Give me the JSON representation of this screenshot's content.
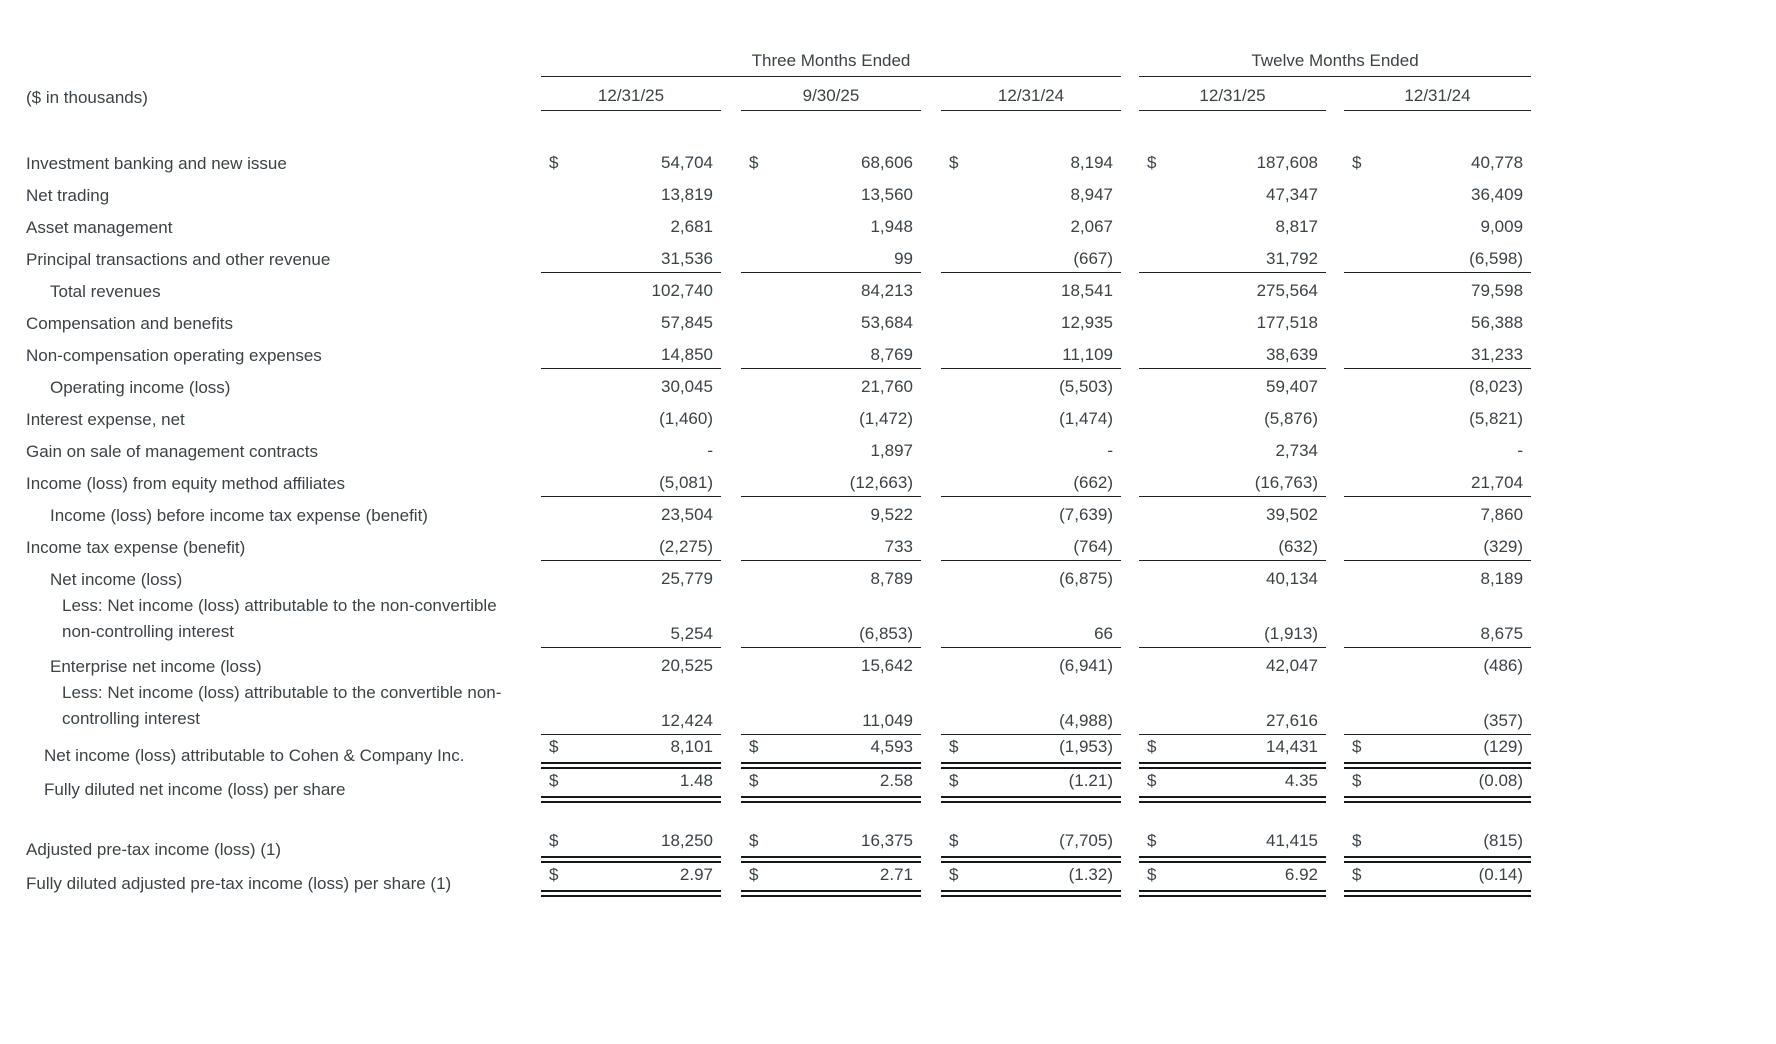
{
  "meta": {
    "units_label": "($ in thousands)"
  },
  "header": {
    "groups": [
      {
        "label": "Three Months Ended"
      },
      {
        "label": "Twelve Months Ended"
      }
    ],
    "dates": [
      "12/31/25",
      "9/30/25",
      "12/31/24",
      "12/31/25",
      "12/31/24"
    ]
  },
  "rows": [
    {
      "label": "Investment banking and new issue",
      "ind": 0,
      "dollar": true,
      "rule": "none",
      "values": [
        "54,704",
        "68,606",
        "8,194",
        "187,608",
        "40,778"
      ]
    },
    {
      "label": "Net trading",
      "ind": 0,
      "dollar": false,
      "rule": "none",
      "values": [
        "13,819",
        "13,560",
        "8,947",
        "47,347",
        "36,409"
      ]
    },
    {
      "label": "Asset management",
      "ind": 0,
      "dollar": false,
      "rule": "none",
      "values": [
        "2,681",
        "1,948",
        "2,067",
        "8,817",
        "9,009"
      ]
    },
    {
      "label": "Principal transactions and other revenue",
      "ind": 0,
      "dollar": false,
      "rule": "single",
      "values": [
        "31,536",
        "99",
        "(667)",
        "31,792",
        "(6,598)"
      ]
    },
    {
      "label": "Total revenues",
      "ind": 2,
      "dollar": false,
      "rule": "none",
      "values": [
        "102,740",
        "84,213",
        "18,541",
        "275,564",
        "79,598"
      ]
    },
    {
      "label": "Compensation and benefits",
      "ind": 0,
      "dollar": false,
      "rule": "none",
      "values": [
        "57,845",
        "53,684",
        "12,935",
        "177,518",
        "56,388"
      ]
    },
    {
      "label": "Non-compensation operating expenses",
      "ind": 0,
      "dollar": false,
      "rule": "single",
      "values": [
        "14,850",
        "8,769",
        "11,109",
        "38,639",
        "31,233"
      ]
    },
    {
      "label": "Operating income (loss)",
      "ind": 2,
      "dollar": false,
      "rule": "none",
      "values": [
        "30,045",
        "21,760",
        "(5,503)",
        "59,407",
        "(8,023)"
      ]
    },
    {
      "label": "Interest expense, net",
      "ind": 0,
      "dollar": false,
      "rule": "none",
      "values": [
        "(1,460)",
        "(1,472)",
        "(1,474)",
        "(5,876)",
        "(5,821)"
      ]
    },
    {
      "label": "Gain on sale of management contracts",
      "ind": 0,
      "dollar": false,
      "rule": "none",
      "values": [
        "-",
        "1,897",
        "-",
        "2,734",
        "-"
      ]
    },
    {
      "label": "Income (loss) from equity method affiliates",
      "ind": 0,
      "dollar": false,
      "rule": "single",
      "values": [
        "(5,081)",
        "(12,663)",
        "(662)",
        "(16,763)",
        "21,704"
      ]
    },
    {
      "label": "Income (loss) before income tax expense (benefit)",
      "ind": 2,
      "dollar": false,
      "rule": "none",
      "values": [
        "23,504",
        "9,522",
        "(7,639)",
        "39,502",
        "7,860"
      ]
    },
    {
      "label": "Income tax expense (benefit)",
      "ind": 0,
      "dollar": false,
      "rule": "single",
      "values": [
        "(2,275)",
        "733",
        "(764)",
        "(632)",
        "(329)"
      ]
    },
    {
      "label": "Net income (loss)",
      "ind": 2,
      "dollar": false,
      "rule": "none",
      "values": [
        "25,779",
        "8,789",
        "(6,875)",
        "40,134",
        "8,189"
      ]
    },
    {
      "label": "Less: Net income (loss) attributable to the non-convertible",
      "label2": "non-controlling interest",
      "ind": 3,
      "dollar": false,
      "rule": "single",
      "values": [
        "5,254",
        "(6,853)",
        "66",
        "(1,913)",
        "8,675"
      ]
    },
    {
      "label": "Enterprise net income (loss)",
      "ind": 2,
      "dollar": false,
      "rule": "none",
      "values": [
        "20,525",
        "15,642",
        "(6,941)",
        "42,047",
        "(486)"
      ]
    },
    {
      "label": "Less: Net income (loss) attributable to the convertible non-",
      "label2": "controlling interest",
      "ind": 3,
      "dollar": false,
      "rule": "single",
      "values": [
        "12,424",
        "11,049",
        "(4,988)",
        "27,616",
        "(357)"
      ]
    },
    {
      "label": "Net income (loss) attributable to Cohen & Company Inc.",
      "ind": 1,
      "dollar": true,
      "rule": "double",
      "values": [
        "8,101",
        "4,593",
        "(1,953)",
        "14,431",
        "(129)"
      ]
    },
    {
      "label": "Fully diluted net income (loss) per share",
      "ind": 1,
      "dollar": true,
      "rule": "double",
      "values": [
        "1.48",
        "2.58",
        "(1.21)",
        "4.35",
        "(0.08)"
      ]
    },
    {
      "spacer": true
    },
    {
      "label": "Adjusted pre-tax income (loss) (1)",
      "ind": 0,
      "dollar": true,
      "rule": "double",
      "values": [
        "18,250",
        "16,375",
        "(7,705)",
        "41,415",
        "(815)"
      ]
    },
    {
      "label": "Fully diluted adjusted pre-tax income (loss) per share (1)",
      "ind": 0,
      "dollar": true,
      "rule": "double",
      "values": [
        "2.97",
        "2.71",
        "(1.32)",
        "6.92",
        "(0.14)"
      ]
    }
  ]
}
